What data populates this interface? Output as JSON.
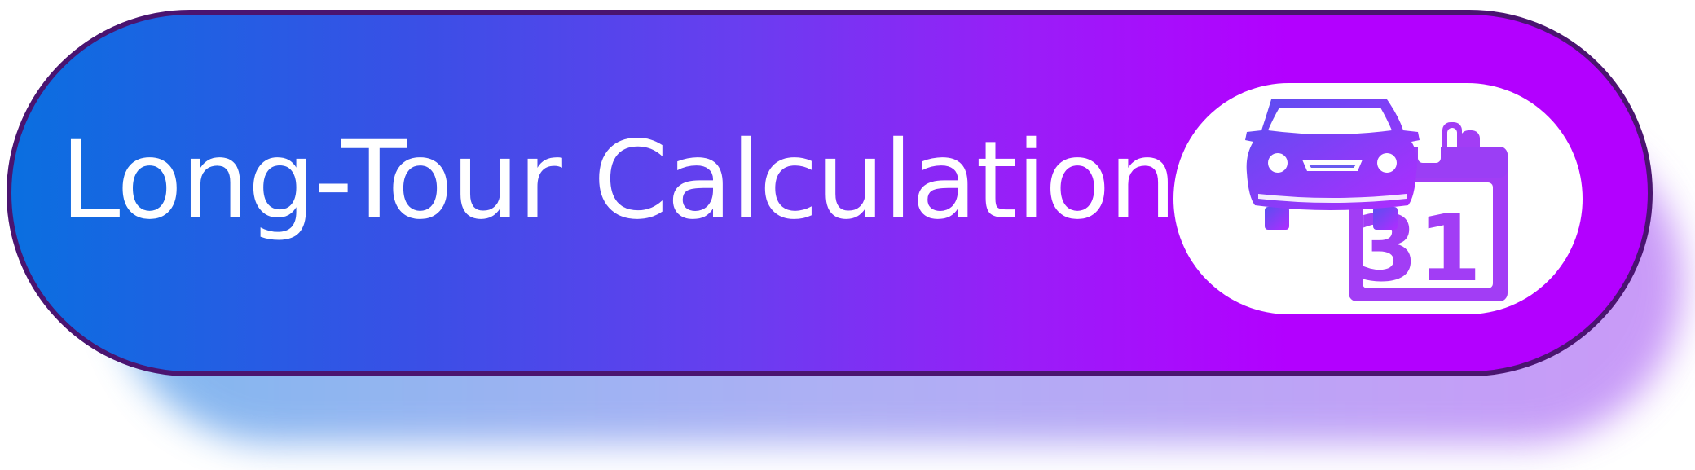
{
  "button": {
    "label": "Long-Tour Calculation",
    "icon": "car-calendar-icon"
  },
  "calendar": {
    "day": "31"
  },
  "colors": {
    "gradient_start": "#0a6fe0",
    "gradient_mid": "#6a3df0",
    "gradient_end": "#b300ff",
    "border": "#4a1470",
    "badge": "#ffffff",
    "icon": "#9b3ef5"
  }
}
